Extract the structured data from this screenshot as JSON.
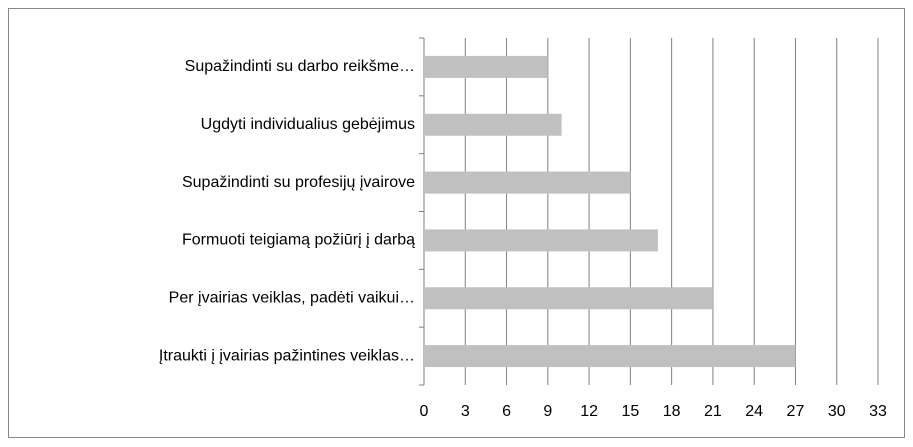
{
  "chart_data": {
    "type": "bar",
    "orientation": "horizontal",
    "categories": [
      "Supažindinti su darbo reikšme…",
      "Ugdyti individualius gebėjimus",
      "Supažindinti su profesijų įvairove",
      "Formuoti teigiamą požiūrį į darbą",
      "Per įvairias veiklas, padėti vaikui…",
      "Įtraukti į įvairias pažintines veiklas…"
    ],
    "values": [
      9,
      10,
      15,
      17,
      21,
      27
    ],
    "color": "#c0c0c0",
    "xlim": [
      0,
      33
    ],
    "xticks": [
      0,
      3,
      6,
      9,
      12,
      15,
      18,
      21,
      24,
      27,
      30,
      33
    ],
    "grid": true
  }
}
